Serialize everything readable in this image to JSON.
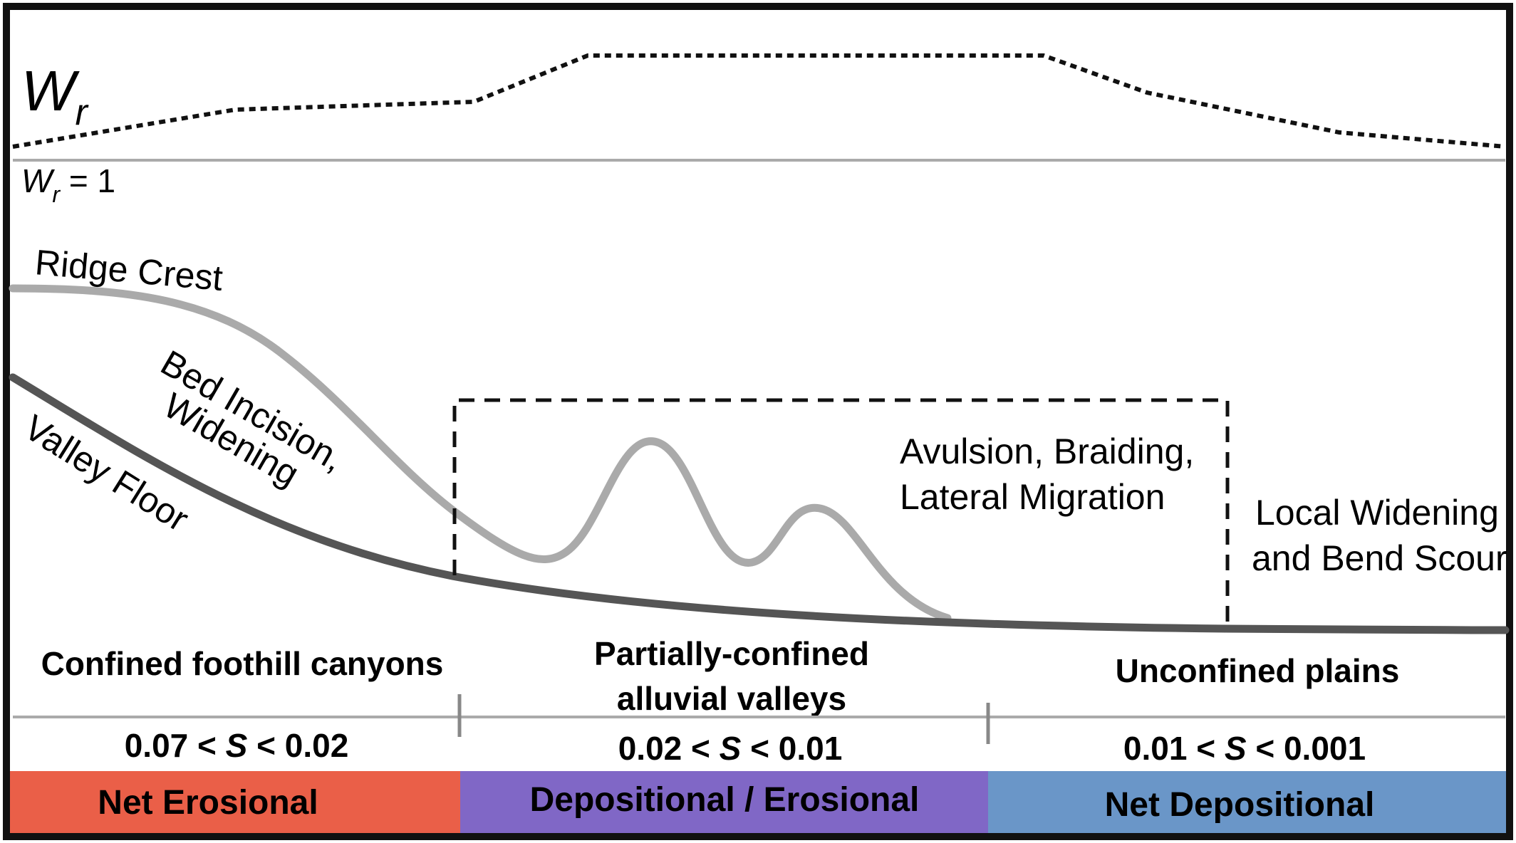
{
  "wr": {
    "symbol": "W",
    "subscript": "r",
    "baseline_label_prefix": "W",
    "baseline_label_sub": "r",
    "baseline_label_value": " = 1"
  },
  "profile_labels": {
    "ridge_crest": "Ridge Crest",
    "bed_incision_1": "Bed Incision,",
    "bed_incision_2": "Widening",
    "valley_floor": "Valley Floor",
    "avulsion_1": "Avulsion, Braiding,",
    "avulsion_2": "Lateral Migration",
    "local_widening_1": "Local Widening",
    "local_widening_2": "and Bend Scour"
  },
  "zones": [
    {
      "name_lines": [
        "Confined foothill canyons"
      ],
      "slope_left": "0.07 < ",
      "slope_var": "S",
      "slope_right": " < 0.02",
      "band": "Net Erosional",
      "color": "#ea5f48"
    },
    {
      "name_lines": [
        "Partially-confined",
        "alluvial valleys"
      ],
      "slope_left": "0.02 < ",
      "slope_var": "S",
      "slope_right": " < 0.01",
      "band": "Depositional / Erosional",
      "color": "#8067c6"
    },
    {
      "name_lines": [
        "Unconfined plains"
      ],
      "slope_left": "0.01 < ",
      "slope_var": "S",
      "slope_right": " < 0.001",
      "band": "Net Depositional",
      "color": "#6a96c8"
    }
  ],
  "colors": {
    "frame": "#111111",
    "valley_floor": "#555555",
    "ridge": "#aaaaaa",
    "baseline": "#aaaaaa"
  }
}
